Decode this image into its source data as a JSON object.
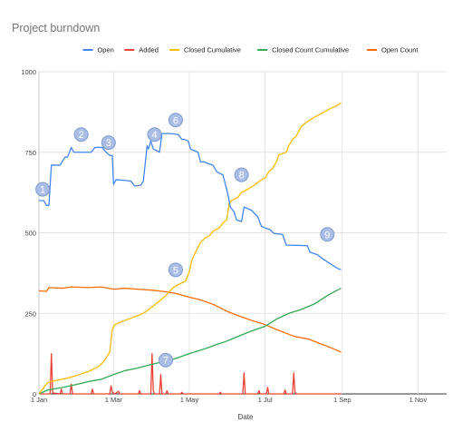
{
  "chart_data": {
    "type": "line",
    "title": "Project burndown",
    "xlabel": "Date",
    "ylabel": "",
    "ylim": [
      0,
      1000
    ],
    "yticks": [
      "0",
      "250",
      "500",
      "750",
      "1000"
    ],
    "xdomain": [
      "2024-01-01",
      "2024-11-24"
    ],
    "xticks": [
      {
        "date": "2024-01-01",
        "label": "1 Jan"
      },
      {
        "date": "2024-03-01",
        "label": "1 Mar"
      },
      {
        "date": "2024-05-01",
        "label": "1 May"
      },
      {
        "date": "2024-07-01",
        "label": "1 Jul"
      },
      {
        "date": "2024-09-01",
        "label": "1 Sep"
      },
      {
        "date": "2024-11-01",
        "label": "1 Nov"
      }
    ],
    "grid": true,
    "legend_position": "top",
    "series": [
      {
        "name": "Open",
        "color": "#4285f4",
        "points": [
          [
            "2024-01-01",
            600
          ],
          [
            "2024-01-05",
            600
          ],
          [
            "2024-01-07",
            585
          ],
          [
            "2024-01-09",
            585
          ],
          [
            "2024-01-11",
            710
          ],
          [
            "2024-01-18",
            710
          ],
          [
            "2024-01-22",
            735
          ],
          [
            "2024-01-24",
            735
          ],
          [
            "2024-01-27",
            765
          ],
          [
            "2024-01-29",
            750
          ],
          [
            "2024-02-12",
            750
          ],
          [
            "2024-02-15",
            765
          ],
          [
            "2024-02-21",
            765
          ],
          [
            "2024-02-24",
            750
          ],
          [
            "2024-02-27",
            740
          ],
          [
            "2024-02-29",
            740
          ],
          [
            "2024-03-01",
            650
          ],
          [
            "2024-03-03",
            665
          ],
          [
            "2024-03-12",
            662
          ],
          [
            "2024-03-15",
            660
          ],
          [
            "2024-03-18",
            645
          ],
          [
            "2024-03-23",
            648
          ],
          [
            "2024-03-25",
            660
          ],
          [
            "2024-03-28",
            770
          ],
          [
            "2024-03-29",
            760
          ],
          [
            "2024-03-31",
            785
          ],
          [
            "2024-04-02",
            760
          ],
          [
            "2024-04-07",
            750
          ],
          [
            "2024-04-09",
            808
          ],
          [
            "2024-04-16",
            808
          ],
          [
            "2024-04-22",
            805
          ],
          [
            "2024-04-25",
            790
          ],
          [
            "2024-04-27",
            790
          ],
          [
            "2024-04-30",
            785
          ],
          [
            "2024-05-02",
            760
          ],
          [
            "2024-05-05",
            755
          ],
          [
            "2024-05-08",
            750
          ],
          [
            "2024-05-10",
            720
          ],
          [
            "2024-05-13",
            720
          ],
          [
            "2024-05-16",
            715
          ],
          [
            "2024-05-20",
            710
          ],
          [
            "2024-05-23",
            690
          ],
          [
            "2024-05-25",
            685
          ],
          [
            "2024-05-28",
            680
          ],
          [
            "2024-05-30",
            650
          ],
          [
            "2024-06-01",
            620
          ],
          [
            "2024-06-03",
            580
          ],
          [
            "2024-06-06",
            565
          ],
          [
            "2024-06-08",
            540
          ],
          [
            "2024-06-12",
            535
          ],
          [
            "2024-06-14",
            580
          ],
          [
            "2024-06-20",
            570
          ],
          [
            "2024-06-25",
            550
          ],
          [
            "2024-06-28",
            520
          ],
          [
            "2024-07-01",
            515
          ],
          [
            "2024-07-05",
            510
          ],
          [
            "2024-07-08",
            498
          ],
          [
            "2024-07-15",
            495
          ],
          [
            "2024-07-18",
            462
          ],
          [
            "2024-08-04",
            460
          ],
          [
            "2024-08-06",
            440
          ],
          [
            "2024-08-12",
            432
          ],
          [
            "2024-08-16",
            420
          ],
          [
            "2024-08-20",
            410
          ],
          [
            "2024-08-24",
            400
          ],
          [
            "2024-08-28",
            390
          ],
          [
            "2024-08-31",
            385
          ]
        ]
      },
      {
        "name": "Added",
        "color": "#ea4335",
        "points": [
          [
            "2024-01-01",
            0
          ],
          [
            "2024-01-10",
            0
          ],
          [
            "2024-01-11",
            125
          ],
          [
            "2024-01-12",
            3
          ],
          [
            "2024-01-18",
            0
          ],
          [
            "2024-01-19",
            15
          ],
          [
            "2024-01-20",
            0
          ],
          [
            "2024-01-26",
            0
          ],
          [
            "2024-01-27",
            30
          ],
          [
            "2024-01-28",
            0
          ],
          [
            "2024-02-12",
            0
          ],
          [
            "2024-02-13",
            15
          ],
          [
            "2024-02-14",
            0
          ],
          [
            "2024-02-27",
            0
          ],
          [
            "2024-02-28",
            25
          ],
          [
            "2024-02-29",
            5
          ],
          [
            "2024-03-02",
            0
          ],
          [
            "2024-03-05",
            8
          ],
          [
            "2024-03-06",
            0
          ],
          [
            "2024-03-21",
            0
          ],
          [
            "2024-03-22",
            10
          ],
          [
            "2024-03-23",
            0
          ],
          [
            "2024-03-31",
            0
          ],
          [
            "2024-04-01",
            125
          ],
          [
            "2024-04-02",
            10
          ],
          [
            "2024-04-03",
            0
          ],
          [
            "2024-04-07",
            0
          ],
          [
            "2024-04-08",
            60
          ],
          [
            "2024-04-09",
            0
          ],
          [
            "2024-04-12",
            0
          ],
          [
            "2024-04-13",
            10
          ],
          [
            "2024-04-14",
            0
          ],
          [
            "2024-04-24",
            0
          ],
          [
            "2024-04-25",
            5
          ],
          [
            "2024-04-26",
            0
          ],
          [
            "2024-05-25",
            0
          ],
          [
            "2024-05-26",
            5
          ],
          [
            "2024-05-27",
            0
          ],
          [
            "2024-06-13",
            0
          ],
          [
            "2024-06-14",
            65
          ],
          [
            "2024-06-15",
            0
          ],
          [
            "2024-06-25",
            0
          ],
          [
            "2024-06-26",
            10
          ],
          [
            "2024-06-27",
            0
          ],
          [
            "2024-07-02",
            0
          ],
          [
            "2024-07-03",
            20
          ],
          [
            "2024-07-04",
            0
          ],
          [
            "2024-07-16",
            0
          ],
          [
            "2024-07-17",
            12
          ],
          [
            "2024-07-18",
            0
          ],
          [
            "2024-07-23",
            0
          ],
          [
            "2024-07-24",
            65
          ],
          [
            "2024-07-25",
            5
          ],
          [
            "2024-07-26",
            0
          ],
          [
            "2024-08-31",
            0
          ]
        ]
      },
      {
        "name": "Closed Cumulative",
        "color": "#fbbc04",
        "points": [
          [
            "2024-01-01",
            0
          ],
          [
            "2024-01-08",
            35
          ],
          [
            "2024-01-15",
            42
          ],
          [
            "2024-01-25",
            50
          ],
          [
            "2024-02-01",
            58
          ],
          [
            "2024-02-10",
            70
          ],
          [
            "2024-02-18",
            85
          ],
          [
            "2024-02-22",
            100
          ],
          [
            "2024-02-27",
            130
          ],
          [
            "2024-02-29",
            200
          ],
          [
            "2024-03-02",
            215
          ],
          [
            "2024-03-08",
            225
          ],
          [
            "2024-03-15",
            235
          ],
          [
            "2024-03-22",
            245
          ],
          [
            "2024-03-27",
            255
          ],
          [
            "2024-04-01",
            270
          ],
          [
            "2024-04-06",
            285
          ],
          [
            "2024-04-12",
            305
          ],
          [
            "2024-04-18",
            330
          ],
          [
            "2024-04-25",
            345
          ],
          [
            "2024-04-28",
            350
          ],
          [
            "2024-05-01",
            380
          ],
          [
            "2024-05-03",
            415
          ],
          [
            "2024-05-06",
            440
          ],
          [
            "2024-05-10",
            470
          ],
          [
            "2024-05-14",
            485
          ],
          [
            "2024-05-17",
            490
          ],
          [
            "2024-05-20",
            505
          ],
          [
            "2024-05-25",
            515
          ],
          [
            "2024-05-28",
            530
          ],
          [
            "2024-05-31",
            540
          ],
          [
            "2024-06-02",
            590
          ],
          [
            "2024-06-04",
            600
          ],
          [
            "2024-06-09",
            610
          ],
          [
            "2024-06-12",
            625
          ],
          [
            "2024-06-17",
            635
          ],
          [
            "2024-06-23",
            650
          ],
          [
            "2024-06-28",
            665
          ],
          [
            "2024-07-01",
            670
          ],
          [
            "2024-07-04",
            690
          ],
          [
            "2024-07-07",
            700
          ],
          [
            "2024-07-10",
            720
          ],
          [
            "2024-07-12",
            742
          ],
          [
            "2024-07-18",
            750
          ],
          [
            "2024-07-20",
            770
          ],
          [
            "2024-07-23",
            790
          ],
          [
            "2024-07-26",
            800
          ],
          [
            "2024-07-30",
            830
          ],
          [
            "2024-08-04",
            845
          ],
          [
            "2024-08-08",
            855
          ],
          [
            "2024-08-15",
            870
          ],
          [
            "2024-08-22",
            885
          ],
          [
            "2024-08-28",
            895
          ],
          [
            "2024-08-31",
            903
          ]
        ]
      },
      {
        "name": "Closed Count Cumulative",
        "color": "#34a853",
        "points": [
          [
            "2024-01-01",
            0
          ],
          [
            "2024-01-08",
            12
          ],
          [
            "2024-01-20",
            20
          ],
          [
            "2024-02-01",
            30
          ],
          [
            "2024-02-12",
            40
          ],
          [
            "2024-02-20",
            45
          ],
          [
            "2024-03-01",
            60
          ],
          [
            "2024-03-10",
            72
          ],
          [
            "2024-03-20",
            80
          ],
          [
            "2024-04-01",
            92
          ],
          [
            "2024-04-10",
            100
          ],
          [
            "2024-04-20",
            110
          ],
          [
            "2024-05-01",
            125
          ],
          [
            "2024-05-15",
            142
          ],
          [
            "2024-05-22",
            152
          ],
          [
            "2024-06-01",
            165
          ],
          [
            "2024-06-10",
            180
          ],
          [
            "2024-06-20",
            195
          ],
          [
            "2024-07-01",
            210
          ],
          [
            "2024-07-10",
            232
          ],
          [
            "2024-07-20",
            250
          ],
          [
            "2024-07-30",
            262
          ],
          [
            "2024-08-10",
            280
          ],
          [
            "2024-08-20",
            305
          ],
          [
            "2024-08-31",
            328
          ]
        ]
      },
      {
        "name": "Open Count",
        "color": "#ff6d01",
        "points": [
          [
            "2024-01-01",
            320
          ],
          [
            "2024-01-07",
            318
          ],
          [
            "2024-01-09",
            330
          ],
          [
            "2024-01-20",
            328
          ],
          [
            "2024-01-27",
            332
          ],
          [
            "2024-02-10",
            330
          ],
          [
            "2024-02-20",
            332
          ],
          [
            "2024-03-01",
            325
          ],
          [
            "2024-03-10",
            328
          ],
          [
            "2024-03-20",
            325
          ],
          [
            "2024-04-01",
            322
          ],
          [
            "2024-04-10",
            318
          ],
          [
            "2024-04-20",
            312
          ],
          [
            "2024-05-01",
            300
          ],
          [
            "2024-05-10",
            292
          ],
          [
            "2024-05-20",
            278
          ],
          [
            "2024-05-27",
            265
          ],
          [
            "2024-06-01",
            255
          ],
          [
            "2024-06-10",
            242
          ],
          [
            "2024-06-20",
            228
          ],
          [
            "2024-07-01",
            215
          ],
          [
            "2024-07-10",
            200
          ],
          [
            "2024-07-20",
            185
          ],
          [
            "2024-07-25",
            178
          ],
          [
            "2024-08-05",
            170
          ],
          [
            "2024-08-15",
            155
          ],
          [
            "2024-08-25",
            140
          ],
          [
            "2024-08-31",
            130
          ]
        ]
      }
    ],
    "annotations": [
      {
        "label": "1",
        "x": "2024-01-04",
        "y": 635
      },
      {
        "label": "2",
        "x": "2024-02-04",
        "y": 805
      },
      {
        "label": "3",
        "x": "2024-02-26",
        "y": 780
      },
      {
        "label": "4",
        "x": "2024-04-03",
        "y": 805
      },
      {
        "label": "5",
        "x": "2024-04-20",
        "y": 385
      },
      {
        "label": "6",
        "x": "2024-04-20",
        "y": 850
      },
      {
        "label": "7",
        "x": "2024-04-12",
        "y": 105
      },
      {
        "label": "8",
        "x": "2024-06-12",
        "y": 680
      },
      {
        "label": "9",
        "x": "2024-08-20",
        "y": 495
      }
    ]
  }
}
